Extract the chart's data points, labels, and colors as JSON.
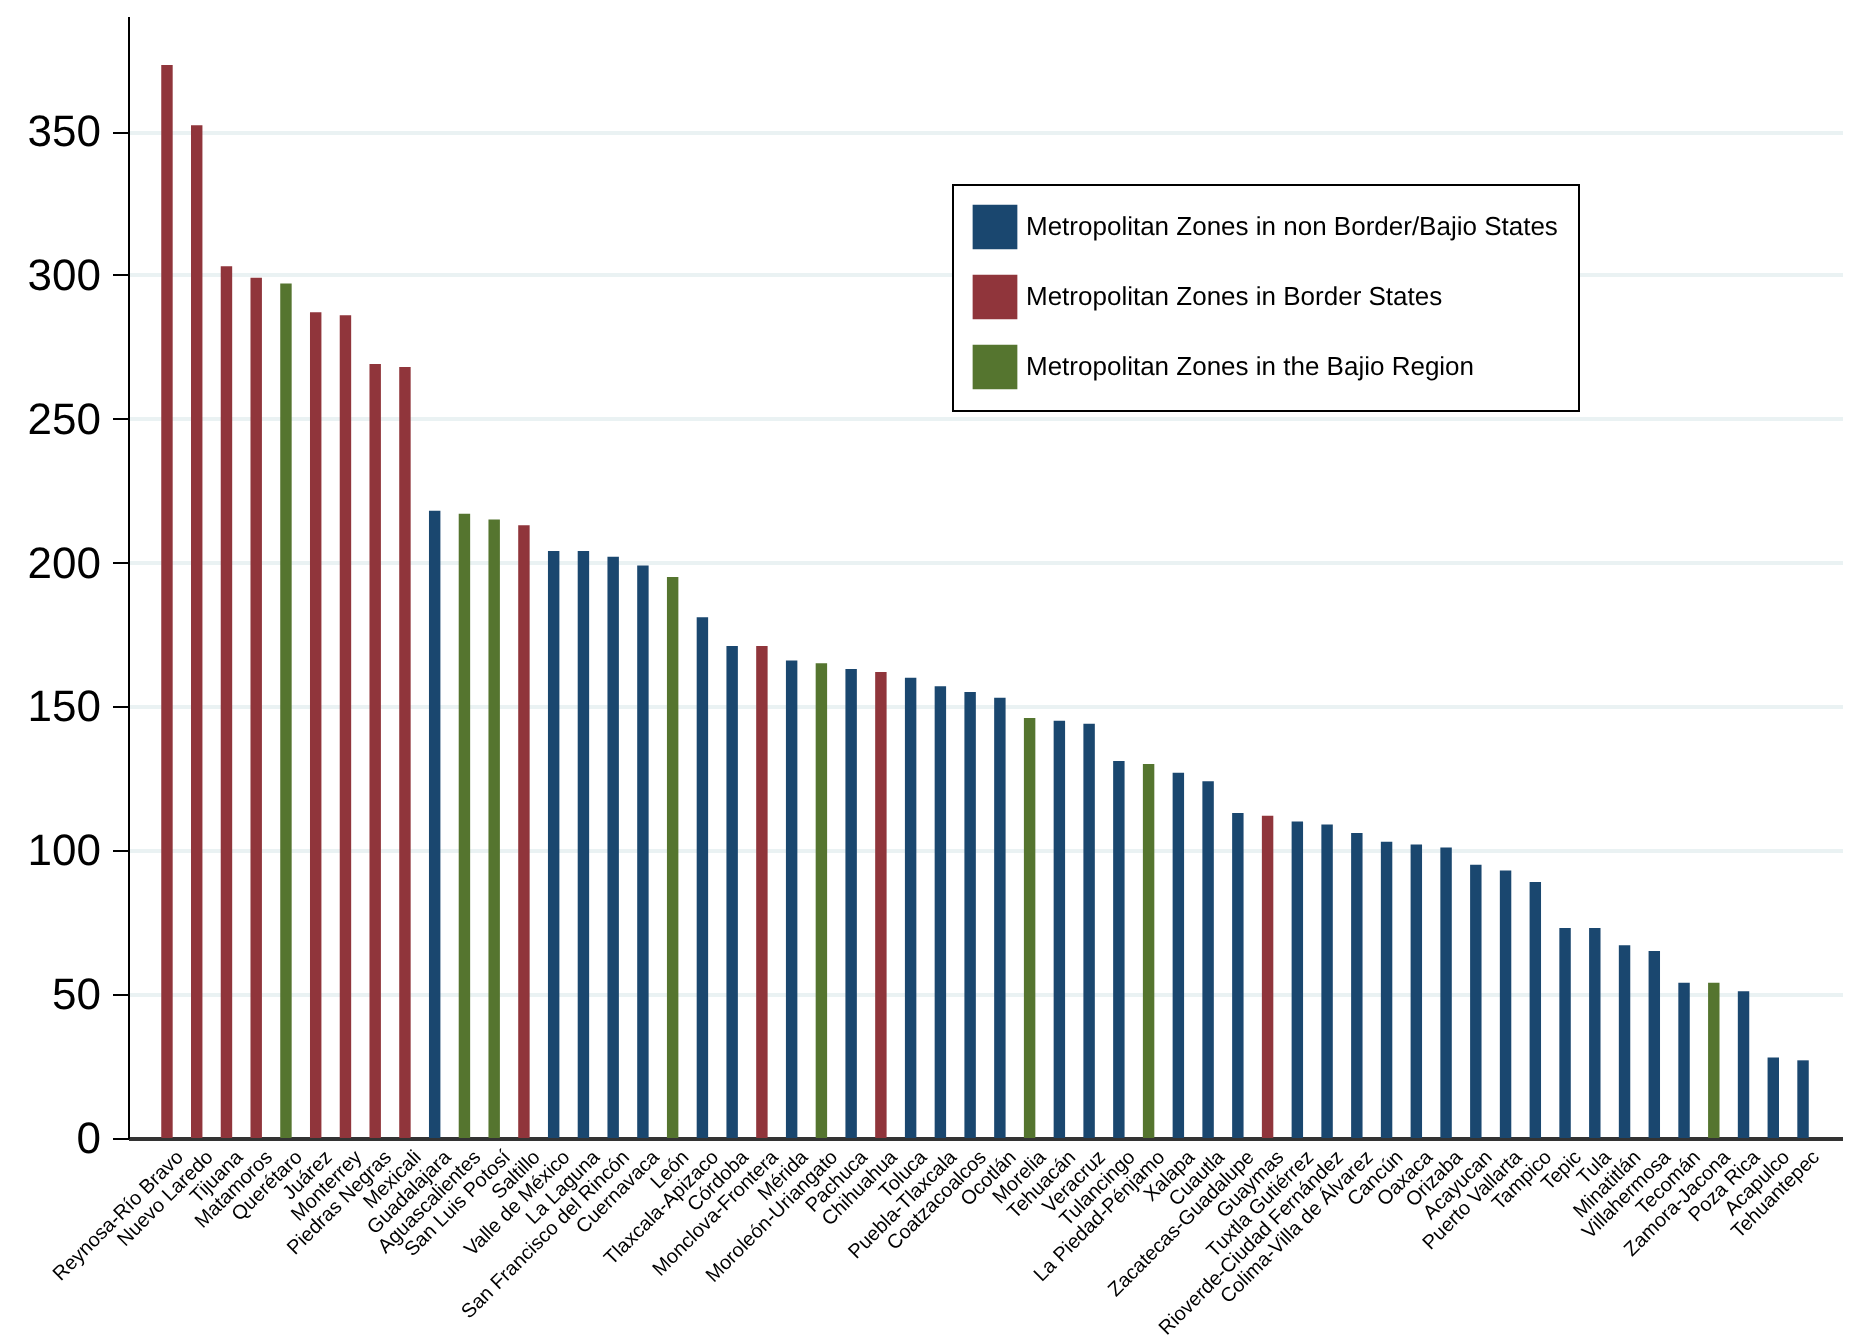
{
  "chart_data": {
    "type": "bar",
    "categories": [
      "Reynosa-Río Bravo",
      "Nuevo Laredo",
      "Tijuana",
      "Matamoros",
      "Querétaro",
      "Juárez",
      "Monterrey",
      "Piedras Negras",
      "Mexicali",
      "Guadalajara",
      "Aguascalientes",
      "San Luis Potosí",
      "Saltillo",
      "Valle de México",
      "La Laguna",
      "San Francisco del Rincón",
      "Cuernavaca",
      "León",
      "Tlaxcala-Apizaco",
      "Córdoba",
      "Monclova-Frontera",
      "Mérida",
      "Moroleón-Uriangato",
      "Pachuca",
      "Chihuahua",
      "Toluca",
      "Puebla-Tlaxcala",
      "Coatzacoalcos",
      "Ocotlán",
      "Morelia",
      "Tehuacán",
      "Veracruz",
      "Tulancingo",
      "La Piedad-Pénjamo",
      "Xalapa",
      "Cuautla",
      "Zacatecas-Guadalupe",
      "Guaymas",
      "Tuxtla Gutiérrez",
      "Rioverde-Ciudad Fernández",
      "Colima-Villa de Álvarez",
      "Cancún",
      "Oaxaca",
      "Orizaba",
      "Acayucan",
      "Puerto Vallarta",
      "Tampico",
      "Tepic",
      "Tula",
      "Minatitlán",
      "Villahermosa",
      "Tecomán",
      "Zamora-Jacona",
      "Poza Rica",
      "Acapulco",
      "Tehuantepec"
    ],
    "series": [
      {
        "name": "Metropolitan Zones in non Border/Bajio States",
        "color": "#1a476f",
        "values": [
          null,
          null,
          null,
          null,
          null,
          null,
          null,
          null,
          null,
          218,
          null,
          null,
          null,
          204,
          204,
          202,
          199,
          null,
          181,
          171,
          null,
          166,
          null,
          163,
          null,
          160,
          157,
          155,
          153,
          null,
          145,
          144,
          131,
          null,
          127,
          124,
          113,
          null,
          110,
          109,
          106,
          103,
          102,
          101,
          95,
          93,
          89,
          73,
          73,
          67,
          65,
          54,
          null,
          51,
          28,
          27
        ]
      },
      {
        "name": "Metropolitan Zones in Border States",
        "color": "#90353b",
        "values": [
          373,
          352,
          303,
          299,
          null,
          287,
          286,
          269,
          268,
          null,
          null,
          null,
          213,
          null,
          null,
          null,
          null,
          null,
          null,
          null,
          171,
          null,
          null,
          null,
          162,
          null,
          null,
          null,
          null,
          null,
          null,
          null,
          null,
          null,
          null,
          null,
          null,
          112,
          null,
          null,
          null,
          null,
          null,
          null,
          null,
          null,
          null,
          null,
          null,
          null,
          null,
          null,
          null,
          null,
          null,
          null
        ]
      },
      {
        "name": "Metropolitan Zones in the Bajio Region",
        "color": "#55752f",
        "values": [
          null,
          null,
          null,
          null,
          297,
          null,
          null,
          null,
          null,
          null,
          217,
          215,
          null,
          null,
          null,
          null,
          null,
          195,
          null,
          null,
          null,
          null,
          165,
          null,
          null,
          null,
          null,
          null,
          null,
          146,
          null,
          null,
          null,
          130,
          null,
          null,
          null,
          null,
          null,
          null,
          null,
          null,
          null,
          null,
          null,
          null,
          null,
          null,
          null,
          null,
          null,
          null,
          54,
          null,
          null,
          null
        ]
      }
    ],
    "ylim": [
      0,
      390
    ],
    "yticks": [
      0,
      50,
      100,
      150,
      200,
      250,
      300,
      350
    ],
    "grid": "y",
    "legend": "top right"
  }
}
